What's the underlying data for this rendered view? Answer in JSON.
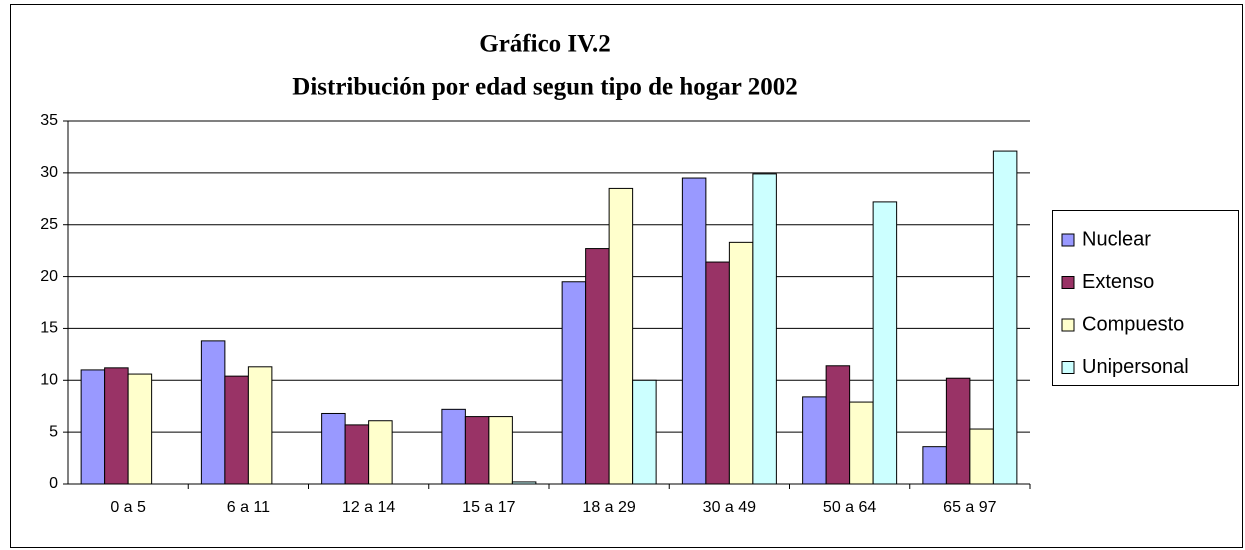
{
  "chart_data": {
    "type": "bar",
    "title": "Gráfico IV.2",
    "subtitle": "Distribución por edad segun tipo de hogar 2002",
    "categories": [
      "0 a 5",
      "6 a 11",
      "12 a 14",
      "15 a 17",
      "18 a 29",
      "30 a 49",
      "50 a 64",
      "65 a 97"
    ],
    "series": [
      {
        "name": "Nuclear",
        "color": "#9999ff",
        "values": [
          11,
          13.8,
          6.8,
          7.2,
          19.5,
          29.5,
          8.4,
          3.6
        ]
      },
      {
        "name": "Extenso",
        "color": "#993366",
        "values": [
          11.2,
          10.4,
          5.7,
          6.5,
          22.7,
          21.4,
          11.4,
          10.2
        ]
      },
      {
        "name": "Compuesto",
        "color": "#ffffcc",
        "values": [
          10.6,
          11.3,
          6.1,
          6.5,
          28.5,
          23.3,
          7.9,
          5.3
        ]
      },
      {
        "name": "Unipersonal",
        "color": "#ccffff",
        "values": [
          null,
          null,
          null,
          0.2,
          10,
          29.9,
          27.2,
          32.1
        ]
      }
    ],
    "ylim": [
      0,
      35
    ],
    "yticks": [
      0,
      5,
      10,
      15,
      20,
      25,
      30,
      35
    ],
    "grid": true,
    "legend": "right"
  }
}
